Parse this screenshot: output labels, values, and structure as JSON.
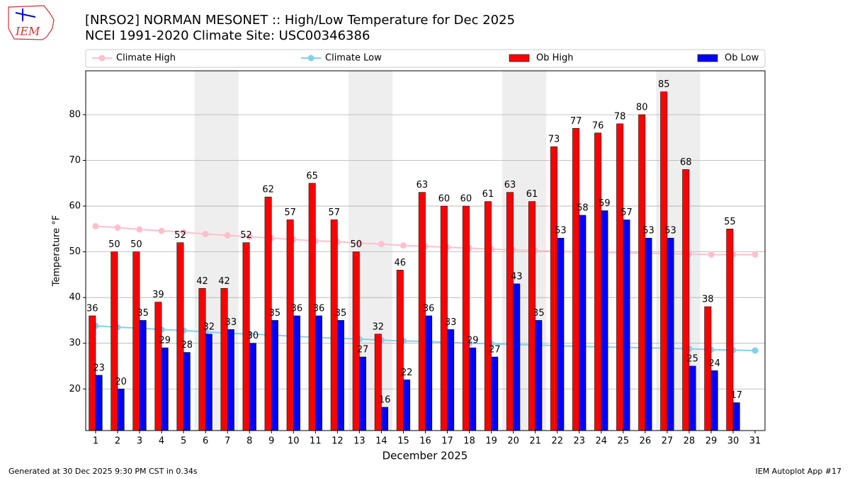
{
  "logo": "IEM",
  "footer_left": "Generated at 30 Dec 2025 9:30 PM CST in 0.34s",
  "footer_right": "IEM Autoplot App #17",
  "chart_data": {
    "type": "bar",
    "title": "[NRSO2] NORMAN MESONET :: High/Low Temperature for Dec 2025",
    "subtitle": "NCEI 1991-2020 Climate Site: USC00346386",
    "xlabel": "December 2025",
    "ylabel": "Temperature °F",
    "x": [
      1,
      2,
      3,
      4,
      5,
      6,
      7,
      8,
      9,
      10,
      11,
      12,
      13,
      14,
      15,
      16,
      17,
      18,
      19,
      20,
      21,
      22,
      23,
      24,
      25,
      26,
      27,
      28,
      29,
      30,
      31
    ],
    "xlim": [
      0.55,
      31.45
    ],
    "xticks": [
      1,
      2,
      3,
      4,
      5,
      6,
      7,
      8,
      9,
      10,
      11,
      12,
      13,
      14,
      15,
      16,
      17,
      18,
      19,
      20,
      21,
      22,
      23,
      24,
      25,
      26,
      27,
      28,
      29,
      30,
      31
    ],
    "ylim": [
      10.9,
      89.6
    ],
    "yticks": [
      20,
      30,
      40,
      50,
      60,
      70,
      80
    ],
    "grid": true,
    "shading": [
      [
        5.5,
        7.5
      ],
      [
        12.5,
        14.5
      ],
      [
        19.5,
        21.5
      ],
      [
        26.5,
        28.5
      ]
    ],
    "shading_color": "#eeeeee",
    "series": [
      {
        "name": "Climate High",
        "type": "line",
        "color": "#ffc0cb",
        "values": [
          55.6,
          55.3,
          54.9,
          54.6,
          54.3,
          53.9,
          53.6,
          53.3,
          53.0,
          52.7,
          52.4,
          52.2,
          51.9,
          51.7,
          51.4,
          51.2,
          51.0,
          50.8,
          50.6,
          50.4,
          50.3,
          50.1,
          50.0,
          49.9,
          49.8,
          49.7,
          49.6,
          49.5,
          49.4,
          49.4,
          49.4
        ]
      },
      {
        "name": "Climate Low",
        "type": "line",
        "color": "#87ceeb",
        "values": [
          33.8,
          33.5,
          33.3,
          33.0,
          32.8,
          32.5,
          32.2,
          32.0,
          31.8,
          31.5,
          31.3,
          31.1,
          30.9,
          30.7,
          30.5,
          30.4,
          30.2,
          30.0,
          29.9,
          29.7,
          29.6,
          29.5,
          29.3,
          29.2,
          29.1,
          29.0,
          28.9,
          28.8,
          28.6,
          28.5,
          28.4
        ]
      },
      {
        "name": "Ob High",
        "type": "bar",
        "color": "#ff0000",
        "values": [
          36,
          50,
          50,
          39,
          52,
          42,
          42,
          52,
          62,
          57,
          65,
          57,
          50,
          32,
          46,
          63,
          60,
          60,
          61,
          63,
          61,
          73,
          77,
          76,
          78,
          80,
          85,
          68,
          38,
          55,
          null
        ]
      },
      {
        "name": "Ob Low",
        "type": "bar",
        "color": "#0000ff",
        "values": [
          23,
          20,
          35,
          29,
          28,
          32,
          33,
          30,
          35,
          36,
          36,
          35,
          27,
          16,
          22,
          36,
          33,
          29,
          27,
          43,
          35,
          53,
          58,
          59,
          57,
          53,
          53,
          25,
          24,
          17,
          null
        ]
      }
    ]
  }
}
